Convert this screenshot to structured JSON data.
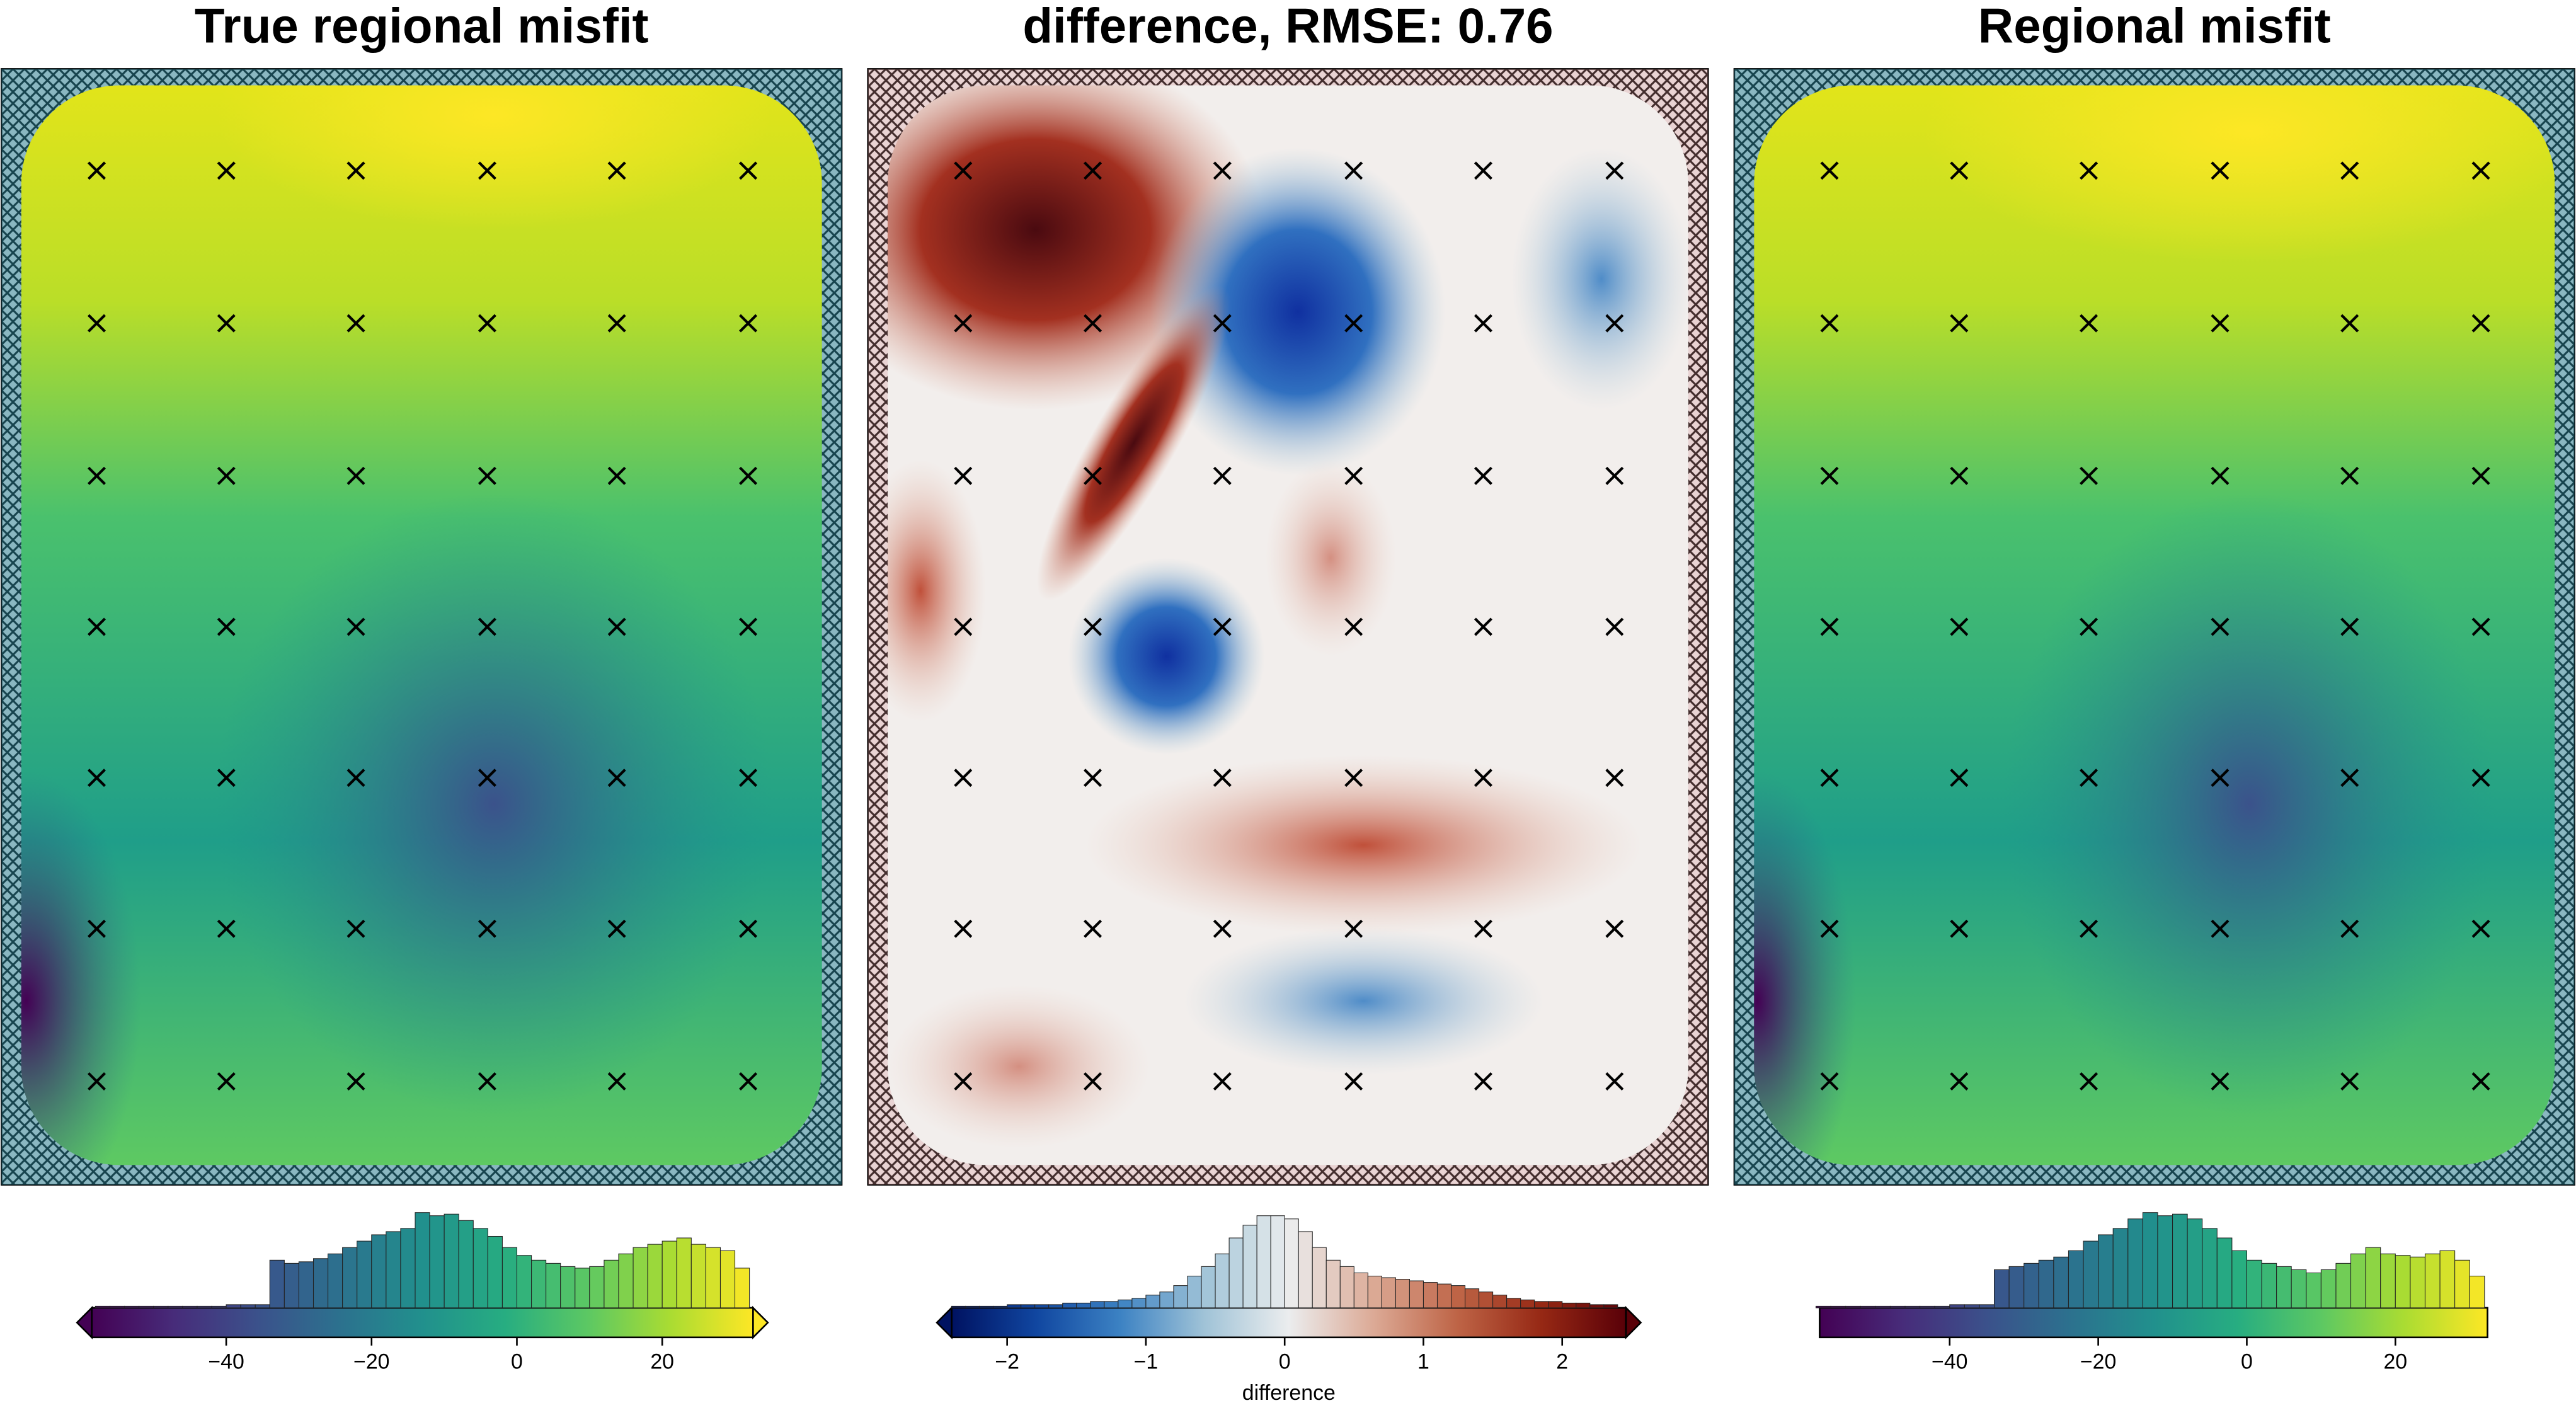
{
  "chart_data": [
    {
      "type": "heatmap",
      "title": "True regional misfit",
      "cmap": "viridis",
      "extend": "both",
      "xlim": [
        -58.5,
        32.5
      ],
      "xticks": [
        {
          "value": -40,
          "label": "−40"
        },
        {
          "value": -20,
          "label": "−20"
        },
        0,
        20
      ],
      "bins": [
        -58,
        -56,
        -54,
        -52,
        -50,
        -48,
        -46,
        -44,
        -42,
        -40,
        -38,
        -36,
        -34,
        -32,
        -30,
        -28,
        -26,
        -24,
        -22,
        -20,
        -18,
        -16,
        -14,
        -12,
        -10,
        -8,
        -6,
        -4,
        -2,
        0,
        2,
        4,
        6,
        8,
        10,
        12,
        14,
        16,
        18,
        20,
        22,
        24,
        26,
        28,
        30,
        32
      ],
      "counts": [
        1,
        1,
        1,
        1,
        1,
        1,
        1,
        1,
        1,
        2,
        2,
        2,
        30,
        28,
        29,
        31,
        34,
        38,
        42,
        46,
        48,
        50,
        60,
        58,
        59,
        55,
        50,
        45,
        38,
        33,
        30,
        28,
        26,
        25,
        26,
        30,
        34,
        38,
        40,
        42,
        44,
        40,
        38,
        36,
        25
      ],
      "ylim": [
        0,
        62
      ]
    },
    {
      "type": "heatmap",
      "title": "difference, RMSE: 0.76",
      "cmap": "vik",
      "extend": "both",
      "xlim": [
        -2.4,
        2.46
      ],
      "label": "difference",
      "xticks": [
        {
          "value": -2,
          "label": "−2"
        },
        {
          "value": -1,
          "label": "−1"
        },
        0,
        1,
        2
      ],
      "bins": [
        -2.4,
        -2.3,
        -2.2,
        -2.1,
        -2.0,
        -1.9,
        -1.8,
        -1.7,
        -1.6,
        -1.5,
        -1.4,
        -1.3,
        -1.2,
        -1.1,
        -1.0,
        -0.9,
        -0.8,
        -0.7,
        -0.6,
        -0.5,
        -0.4,
        -0.3,
        -0.2,
        -0.1,
        0,
        0.1,
        0.2,
        0.3,
        0.4,
        0.5,
        0.6,
        0.7,
        0.8,
        0.9,
        1.0,
        1.1,
        1.2,
        1.3,
        1.4,
        1.5,
        1.6,
        1.7,
        1.8,
        1.9,
        2.0,
        2.1,
        2.2,
        2.3,
        2.4
      ],
      "counts": [
        1,
        1,
        1,
        1,
        2,
        2,
        2,
        2,
        3,
        3,
        4,
        4,
        5,
        6,
        8,
        10,
        14,
        20,
        26,
        34,
        44,
        52,
        58,
        58,
        56,
        48,
        38,
        30,
        26,
        22,
        20,
        19,
        18,
        17,
        16,
        15,
        14,
        12,
        10,
        8,
        6,
        5,
        4,
        4,
        3,
        3,
        2,
        2
      ],
      "ylim": [
        0,
        62
      ]
    },
    {
      "type": "heatmap",
      "title": "Regional misfit",
      "cmap": "viridis",
      "extend": "none",
      "xlim": [
        -57.5,
        32.4
      ],
      "xticks": [
        {
          "value": -40,
          "label": "−40"
        },
        {
          "value": -20,
          "label": "−20"
        },
        0,
        20
      ],
      "bins": [
        -58,
        -56,
        -54,
        -52,
        -50,
        -48,
        -46,
        -44,
        -42,
        -40,
        -38,
        -36,
        -34,
        -32,
        -30,
        -28,
        -26,
        -24,
        -22,
        -20,
        -18,
        -16,
        -14,
        -12,
        -10,
        -8,
        -6,
        -4,
        -2,
        0,
        2,
        4,
        6,
        8,
        10,
        12,
        14,
        16,
        18,
        20,
        22,
        24,
        26,
        28,
        30,
        32
      ],
      "counts": [
        1,
        1,
        1,
        1,
        1,
        1,
        1,
        1,
        1,
        2,
        2,
        2,
        24,
        26,
        28,
        30,
        32,
        36,
        42,
        46,
        50,
        56,
        60,
        58,
        59,
        56,
        50,
        44,
        36,
        30,
        28,
        26,
        24,
        22,
        24,
        28,
        34,
        38,
        34,
        33,
        32,
        34,
        36,
        30,
        20
      ],
      "ylim": [
        0,
        62
      ]
    }
  ]
}
